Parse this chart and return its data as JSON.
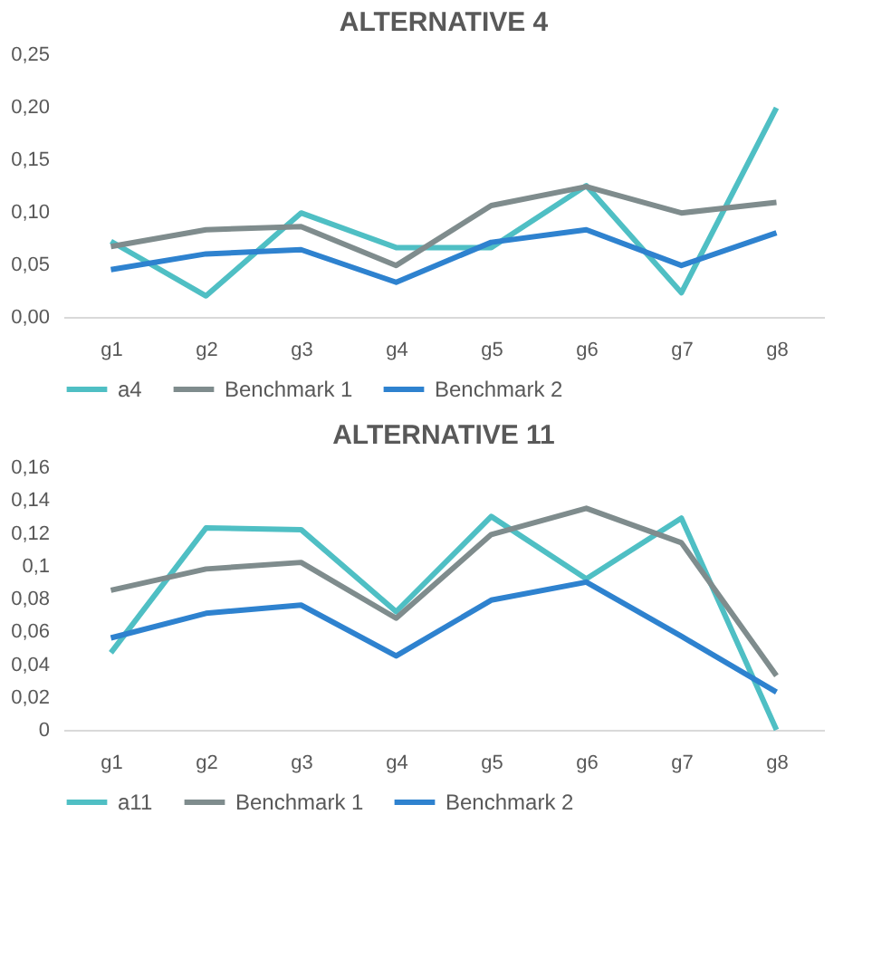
{
  "chart_data": [
    {
      "type": "line",
      "title": "ALTERNATIVE 4",
      "categories": [
        "g1",
        "g2",
        "g3",
        "g4",
        "g5",
        "g6",
        "g7",
        "g8"
      ],
      "series": [
        {
          "name": "a4",
          "color": "#4fbfc4",
          "values": [
            0.072,
            0.02,
            0.099,
            0.066,
            0.066,
            0.125,
            0.023,
            0.199
          ]
        },
        {
          "name": "Benchmark 1",
          "color": "#7f8c8d",
          "values": [
            0.067,
            0.083,
            0.086,
            0.049,
            0.106,
            0.124,
            0.099,
            0.109
          ]
        },
        {
          "name": "Benchmark 2",
          "color": "#2e82cf",
          "values": [
            0.045,
            0.06,
            0.064,
            0.033,
            0.071,
            0.083,
            0.049,
            0.08
          ]
        }
      ],
      "ylim": [
        0,
        0.25
      ],
      "yticks": [
        {
          "value": 0,
          "label": "0,00"
        },
        {
          "value": 0.05,
          "label": "0,05"
        },
        {
          "value": 0.1,
          "label": "0,10"
        },
        {
          "value": 0.15,
          "label": "0,15"
        },
        {
          "value": 0.2,
          "label": "0,20"
        },
        {
          "value": 0.25,
          "label": "0,25"
        }
      ],
      "grid": false,
      "legend": "bottom",
      "marker": "none",
      "line_style": "solid"
    },
    {
      "type": "line",
      "title": "ALTERNATIVE 11",
      "categories": [
        "g1",
        "g2",
        "g3",
        "g4",
        "g5",
        "g6",
        "g7",
        "g8"
      ],
      "series": [
        {
          "name": "a11",
          "color": "#4fbfc4",
          "values": [
            0.047,
            0.123,
            0.122,
            0.072,
            0.13,
            0.092,
            0.129,
            0.0
          ]
        },
        {
          "name": "Benchmark 1",
          "color": "#7f8c8d",
          "values": [
            0.085,
            0.098,
            0.102,
            0.068,
            0.119,
            0.135,
            0.114,
            0.033
          ]
        },
        {
          "name": "Benchmark 2",
          "color": "#2e82cf",
          "values": [
            0.056,
            0.071,
            0.076,
            0.045,
            0.079,
            0.09,
            0.057,
            0.023
          ]
        }
      ],
      "ylim": [
        0,
        0.16
      ],
      "yticks": [
        0,
        {
          "value": 0.02,
          "label": "0,02"
        },
        {
          "value": 0.04,
          "label": "0,04"
        },
        {
          "value": 0.06,
          "label": "0,06"
        },
        {
          "value": 0.08,
          "label": "0,08"
        },
        {
          "value": 0.1,
          "label": "0,1"
        },
        {
          "value": 0.12,
          "label": "0,12"
        },
        {
          "value": 0.14,
          "label": "0,14"
        },
        {
          "value": 0.16,
          "label": "0,16"
        }
      ],
      "grid": false,
      "legend": "bottom",
      "marker": "none",
      "line_style": "solid"
    }
  ]
}
